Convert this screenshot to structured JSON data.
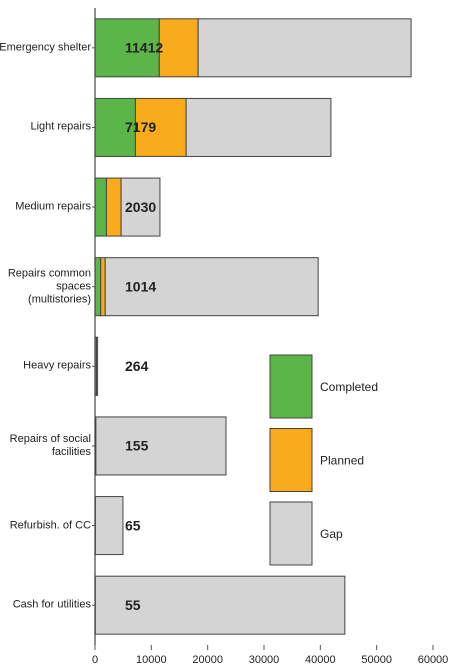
{
  "chart_data": {
    "type": "stacked-barh",
    "categories": [
      "Emergency shelter",
      "Light repairs",
      "Medium repairs",
      "Repairs common spaces (multistories)",
      "Heavy repairs",
      "Repairs of social facilities",
      "Refurbish. of CC",
      "Cash for utilities"
    ],
    "series": [
      {
        "name": "Completed",
        "color": "#5bb548",
        "values": [
          11412,
          7179,
          2030,
          1014,
          264,
          155,
          65,
          55
        ]
      },
      {
        "name": "Planned",
        "color": "#f9ab1c",
        "values": [
          6900,
          9000,
          2600,
          800,
          0,
          0,
          0,
          0
        ]
      },
      {
        "name": "Gap",
        "color": "#d4d4d4",
        "values": [
          37800,
          25700,
          6900,
          37800,
          200,
          23100,
          4900,
          44300
        ]
      }
    ],
    "xlim": [
      0,
      60000
    ],
    "xticks": [
      0,
      10000,
      20000,
      30000,
      40000,
      50000,
      60000
    ]
  }
}
